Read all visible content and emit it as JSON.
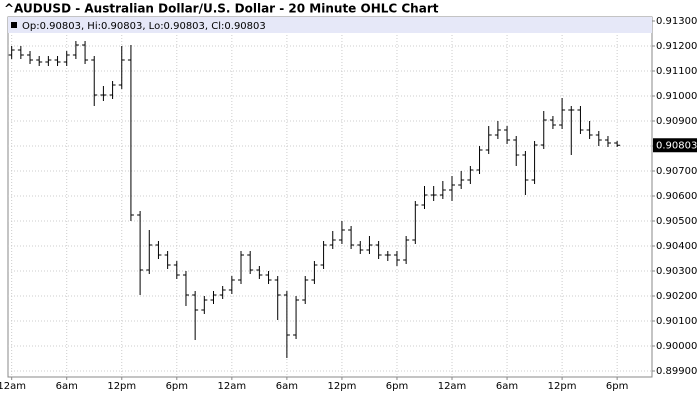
{
  "chart_data": {
    "type": "ohlc",
    "title": "^AUDUSD - Australian Dollar/U.S. Dollar - 20 Minute OHLC Chart",
    "info": "Op:0.90803, Hi:0.90803, Lo:0.90803, Cl:0.90803",
    "last_price": 0.90803,
    "color": "#000000",
    "grid": true,
    "x": [
      0,
      1,
      2,
      3,
      4,
      5,
      6,
      7,
      8,
      9,
      10,
      11,
      12,
      13,
      14,
      15,
      16,
      17,
      18,
      19,
      20,
      21,
      22,
      23,
      24,
      25,
      26,
      27,
      28,
      29,
      30,
      31,
      32,
      33,
      34,
      35,
      36,
      37,
      38,
      39,
      40,
      41,
      42,
      43,
      44,
      45,
      46,
      47,
      48,
      49,
      50,
      51,
      52,
      53,
      54,
      55,
      56,
      57,
      58,
      59,
      60,
      61,
      62,
      63,
      64,
      65,
      66
    ],
    "open": [
      0.91164,
      0.91184,
      0.91164,
      0.91144,
      0.91136,
      0.91144,
      0.91136,
      0.91164,
      0.91204,
      0.91144,
      0.91004,
      0.91004,
      0.91044,
      0.91144,
      0.90524,
      0.90304,
      0.90404,
      0.90364,
      0.90324,
      0.90284,
      0.90204,
      0.90144,
      0.90184,
      0.90204,
      0.90224,
      0.90264,
      0.90364,
      0.90304,
      0.90284,
      0.90264,
      0.90204,
      0.90044,
      0.90184,
      0.90264,
      0.90324,
      0.90404,
      0.90424,
      0.90464,
      0.90404,
      0.90384,
      0.90404,
      0.90364,
      0.90364,
      0.90344,
      0.90424,
      0.90564,
      0.90604,
      0.90604,
      0.90624,
      0.90644,
      0.90664,
      0.90704,
      0.90784,
      0.90844,
      0.90864,
      0.90824,
      0.90764,
      0.90664,
      0.90804,
      0.90904,
      0.90884,
      0.90944,
      0.90944,
      0.90864,
      0.90844,
      0.90824,
      0.90812
    ],
    "high": [
      0.912,
      0.912,
      0.9118,
      0.9116,
      0.9116,
      0.9116,
      0.9118,
      0.9122,
      0.9122,
      0.9116,
      0.9104,
      0.9106,
      0.912,
      0.91204,
      0.9054,
      0.90464,
      0.9042,
      0.9038,
      0.9034,
      0.903,
      0.9022,
      0.902,
      0.9022,
      0.9024,
      0.9028,
      0.9038,
      0.9038,
      0.9032,
      0.903,
      0.9028,
      0.9022,
      0.902,
      0.9028,
      0.9034,
      0.9042,
      0.9046,
      0.905,
      0.9048,
      0.9042,
      0.9044,
      0.9042,
      0.9038,
      0.9038,
      0.9044,
      0.9058,
      0.9064,
      0.9064,
      0.9066,
      0.9068,
      0.907,
      0.9072,
      0.908,
      0.9088,
      0.909,
      0.9088,
      0.9084,
      0.9078,
      0.9082,
      0.9094,
      0.9092,
      0.90992,
      0.9096,
      0.9096,
      0.909,
      0.9086,
      0.9084,
      0.9082
    ],
    "low": [
      0.91148,
      0.91148,
      0.91128,
      0.9112,
      0.9112,
      0.9112,
      0.9112,
      0.91148,
      0.91128,
      0.9096,
      0.9098,
      0.90988,
      0.91028,
      0.905,
      0.90204,
      0.90288,
      0.90348,
      0.90308,
      0.90268,
      0.9016,
      0.90024,
      0.90128,
      0.90168,
      0.90188,
      0.90208,
      0.90248,
      0.90288,
      0.90268,
      0.90248,
      0.90104,
      0.89952,
      0.90028,
      0.90168,
      0.90248,
      0.90308,
      0.90388,
      0.90408,
      0.90388,
      0.90368,
      0.90368,
      0.90348,
      0.9034,
      0.9032,
      0.90328,
      0.90408,
      0.90548,
      0.9058,
      0.90588,
      0.9058,
      0.90628,
      0.90648,
      0.90688,
      0.90768,
      0.90828,
      0.90808,
      0.9072,
      0.90604,
      0.90648,
      0.90788,
      0.90868,
      0.90868,
      0.90764,
      0.90848,
      0.90828,
      0.908,
      0.90796,
      0.90796
    ],
    "close": [
      0.91184,
      0.91164,
      0.91144,
      0.91136,
      0.91144,
      0.91136,
      0.91164,
      0.91204,
      0.91144,
      0.91004,
      0.91004,
      0.91044,
      0.91144,
      0.90524,
      0.90304,
      0.90404,
      0.90364,
      0.90324,
      0.90284,
      0.90204,
      0.90144,
      0.90184,
      0.90204,
      0.90224,
      0.90264,
      0.90364,
      0.90304,
      0.90284,
      0.90264,
      0.90204,
      0.90044,
      0.90184,
      0.90264,
      0.90324,
      0.90404,
      0.90424,
      0.90464,
      0.90404,
      0.90384,
      0.90404,
      0.90364,
      0.90364,
      0.90344,
      0.90424,
      0.90564,
      0.90604,
      0.90604,
      0.90624,
      0.90644,
      0.90664,
      0.90704,
      0.90784,
      0.90844,
      0.90864,
      0.90824,
      0.90764,
      0.90664,
      0.90804,
      0.90904,
      0.90884,
      0.90944,
      0.90944,
      0.90864,
      0.90844,
      0.90824,
      0.90812,
      0.90803
    ],
    "xlim": [
      -0.4,
      69.8
    ],
    "xticks": [
      {
        "value": 0,
        "label": "12am"
      },
      {
        "value": 6,
        "label": "6am"
      },
      {
        "value": 12,
        "label": "12pm"
      },
      {
        "value": 18,
        "label": "6pm"
      },
      {
        "value": 24,
        "label": "12am"
      },
      {
        "value": 30,
        "label": "6am"
      },
      {
        "value": 36,
        "label": "12pm"
      },
      {
        "value": 42,
        "label": "6pm"
      },
      {
        "value": 48,
        "label": "12am"
      },
      {
        "value": 54,
        "label": "6am"
      },
      {
        "value": 60,
        "label": "12pm"
      },
      {
        "value": 66,
        "label": "6pm"
      }
    ],
    "ylim": [
      0.89876,
      0.91316
    ],
    "yticks": [
      {
        "value": 0.899,
        "label": "0.89900"
      },
      {
        "value": 0.9,
        "label": "0.90000"
      },
      {
        "value": 0.901,
        "label": "0.90100"
      },
      {
        "value": 0.902,
        "label": "0.90200"
      },
      {
        "value": 0.903,
        "label": "0.90300"
      },
      {
        "value": 0.904,
        "label": "0.90400"
      },
      {
        "value": 0.905,
        "label": "0.90500"
      },
      {
        "value": 0.906,
        "label": "0.90600"
      },
      {
        "value": 0.907,
        "label": "0.90700"
      },
      {
        "value": 0.908,
        "label": "0.90800"
      },
      {
        "value": 0.909,
        "label": "0.90900"
      },
      {
        "value": 0.91,
        "label": "0.91000"
      },
      {
        "value": 0.911,
        "label": "0.91100"
      },
      {
        "value": 0.912,
        "label": "0.91200"
      },
      {
        "value": 0.913,
        "label": "0.91300"
      }
    ]
  }
}
